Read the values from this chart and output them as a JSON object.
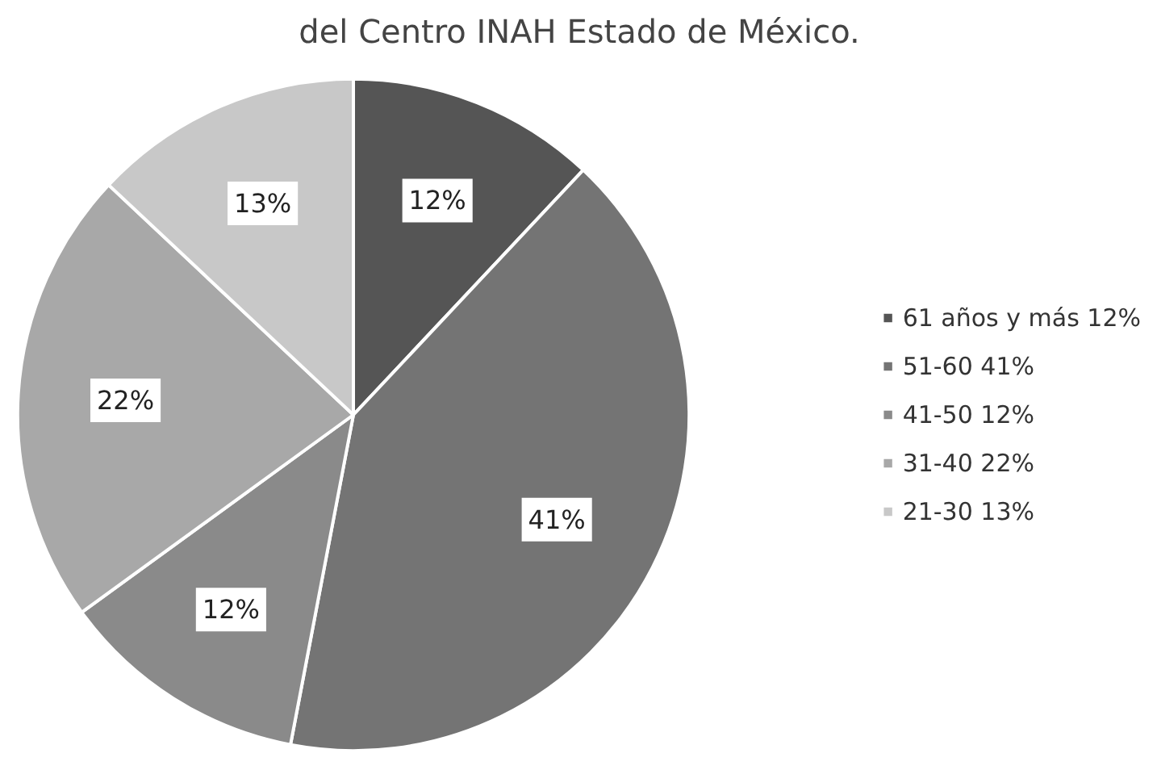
{
  "chart_data": {
    "type": "pie",
    "title": "del Centro INAH Estado de México.",
    "categories": [
      "61 años y más",
      "51-60",
      "41-50",
      "31-40",
      "21-30"
    ],
    "values": [
      12,
      41,
      12,
      22,
      13
    ],
    "value_labels": [
      "12%",
      "41%",
      "12%",
      "22%",
      "13%"
    ],
    "colors": [
      "#555555",
      "#747474",
      "#8a8a8a",
      "#a8a8a8",
      "#c8c8c8"
    ],
    "legend": "right"
  }
}
